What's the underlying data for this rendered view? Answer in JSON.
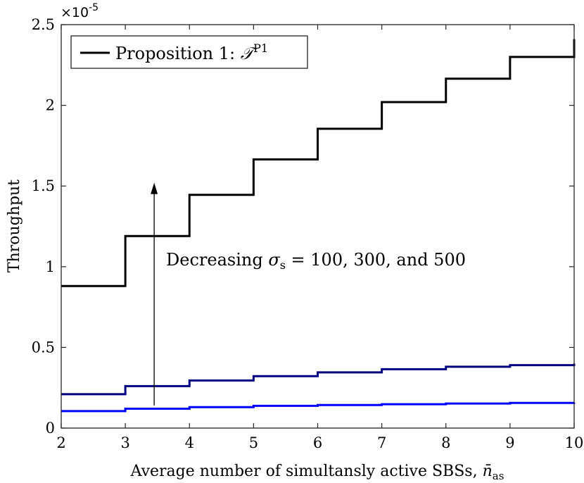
{
  "chart_data": {
    "type": "line",
    "step": true,
    "xlabel_text": "Average number of simultansly active SBSs, ",
    "xlabel_math": "n̄",
    "xlabel_sub": "as",
    "ylabel": "Throughput",
    "exponent_label": "×10",
    "exponent_power": "-5",
    "xlim": [
      2,
      10
    ],
    "ylim": [
      0,
      2.5
    ],
    "xticks": [
      2,
      3,
      4,
      5,
      6,
      7,
      8,
      9,
      10
    ],
    "yticks": [
      0,
      0.5,
      1,
      1.5,
      2,
      2.5
    ],
    "ytick_labels": [
      "0",
      "0.5",
      "1",
      "1.5",
      "2",
      "2.5"
    ],
    "x": [
      2,
      3,
      4,
      5,
      6,
      7,
      8,
      9,
      10
    ],
    "series": [
      {
        "name": "Proposition 1",
        "legend_prefix": "Proposition 1: ",
        "legend_symbol": "𝒯",
        "legend_sup": "P1",
        "color": "#000000",
        "values": [
          0.88,
          1.19,
          1.445,
          1.665,
          1.855,
          2.02,
          2.165,
          2.3,
          2.41
        ]
      },
      {
        "name": "sigma_s = 100",
        "color": "#000080",
        "values": [
          0.21,
          0.26,
          0.295,
          0.322,
          0.345,
          0.365,
          0.38,
          0.39,
          0.4
        ]
      },
      {
        "name": "sigma_s = 300",
        "color": "#0000ff",
        "values": [
          0.105,
          0.12,
          0.13,
          0.138,
          0.143,
          0.148,
          0.152,
          0.156,
          0.158
        ]
      }
    ],
    "annotation": {
      "text_prefix": "Decreasing ",
      "symbol": "σ",
      "sub": "s",
      "text_suffix": " = 100, 300, and 500",
      "arrow_from": [
        3.45,
        0.14
      ],
      "arrow_to": [
        3.45,
        1.52
      ]
    }
  }
}
